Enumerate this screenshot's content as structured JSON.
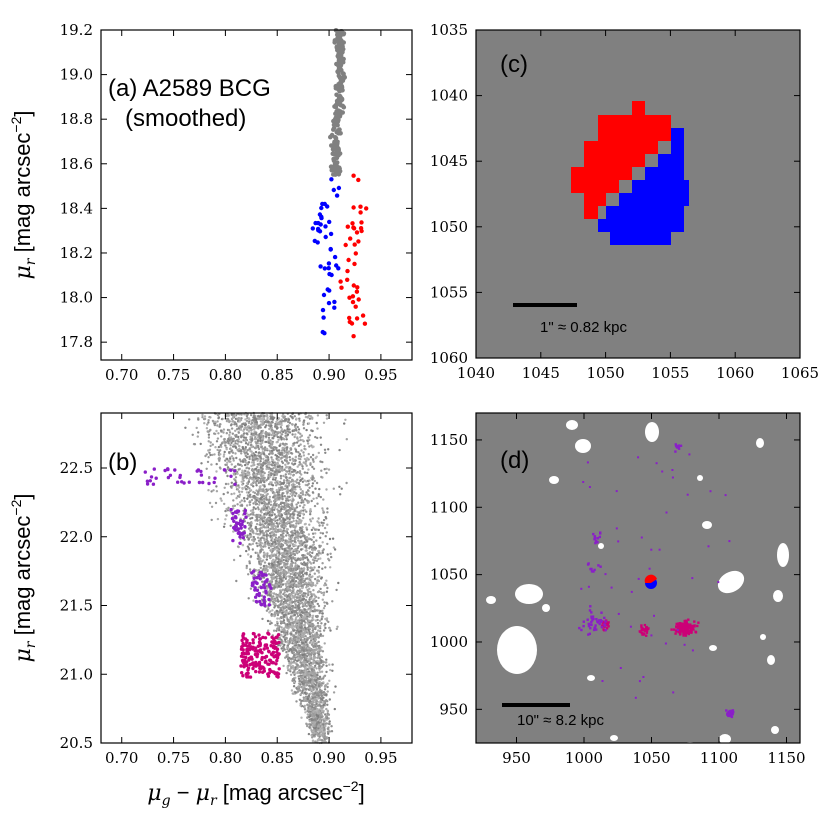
{
  "colors": {
    "blue": "#0000ff",
    "red": "#ff0000",
    "gray_points": "#808080",
    "magenta": "#cc0077",
    "purple": "#8a1fc8",
    "panel_bg": "#808080",
    "mask": "#ffffff"
  },
  "chart_data": [
    {
      "id": "a",
      "type": "scatter",
      "annotation_line1": "(a) A2589 BCG",
      "annotation_line2": "(smoothed)",
      "ylabel": "μ_r [mag arcsec^-2]",
      "xlabel": "",
      "xlim": [
        0.68,
        0.98
      ],
      "ylim": [
        19.2,
        17.72
      ],
      "xticks": [
        "0.70",
        "0.75",
        "0.80",
        "0.85",
        "0.90",
        "0.95"
      ],
      "yticks": [
        "17.8",
        "18.0",
        "18.2",
        "18.4",
        "18.6",
        "18.8",
        "19.0",
        "19.2"
      ],
      "series": [
        {
          "name": "blue",
          "x_range": [
            0.883,
            0.915
          ],
          "y_range": [
            17.83,
            18.55
          ],
          "n": 45
        },
        {
          "name": "red",
          "x_range": [
            0.91,
            0.938
          ],
          "y_range": [
            17.82,
            18.55
          ],
          "n": 40
        },
        {
          "name": "gray",
          "x_range": [
            0.896,
            0.922
          ],
          "y_range": [
            18.55,
            19.2
          ],
          "n": 220
        }
      ]
    },
    {
      "id": "b",
      "type": "scatter",
      "annotation": "(b)",
      "ylabel": "μ_r [mag arcsec^-2]",
      "xlabel": "μ_g − μ_r [mag arcsec^-2]",
      "xlim": [
        0.68,
        0.98
      ],
      "ylim": [
        22.9,
        20.5
      ],
      "xticks": [
        "0.70",
        "0.75",
        "0.80",
        "0.85",
        "0.90",
        "0.95"
      ],
      "yticks": [
        "20.5",
        "21.0",
        "21.5",
        "22.0",
        "22.5"
      ],
      "series": [
        {
          "name": "gray_cloud",
          "description": "dense point cloud along the red sequence"
        },
        {
          "name": "magenta",
          "x_range": [
            0.815,
            0.852
          ],
          "y_range": [
            20.97,
            21.3
          ],
          "n": 180
        },
        {
          "name": "purple_mid",
          "x_range": [
            0.825,
            0.845
          ],
          "y_range": [
            21.5,
            21.75
          ],
          "n": 45
        },
        {
          "name": "purple_low",
          "x_range": [
            0.805,
            0.82
          ],
          "y_range": [
            21.95,
            22.2
          ],
          "n": 40
        },
        {
          "name": "purple_tail",
          "x_range": [
            0.715,
            0.81
          ],
          "y_range": [
            22.38,
            22.5
          ],
          "n": 35
        }
      ]
    },
    {
      "id": "c",
      "type": "image",
      "annotation": "(c)",
      "xlim": [
        1040,
        1065
      ],
      "ylim": [
        1035,
        1060
      ],
      "xticks": [
        "1040",
        "1045",
        "1050",
        "1055",
        "1060",
        "1065"
      ],
      "yticks": [
        "1035",
        "1040",
        "1045",
        "1050",
        "1055",
        "1060"
      ],
      "scalebar_label": "1\" ≈ 0.82 kpc",
      "scalebar_length_data": 5,
      "regions": [
        {
          "name": "red",
          "description": "upper-left half of the BCG core"
        },
        {
          "name": "blue",
          "description": "lower-right half of the BCG core"
        }
      ]
    },
    {
      "id": "d",
      "type": "image",
      "annotation": "(d)",
      "xlim": [
        920,
        1160
      ],
      "ylim": [
        925,
        1170
      ],
      "xticks": [
        "950",
        "1000",
        "1050",
        "1100",
        "1150"
      ],
      "yticks": [
        "950",
        "1000",
        "1050",
        "1100",
        "1150"
      ],
      "scalebar_label": "10\" ≈ 8.2 kpc",
      "scalebar_length_data": 50,
      "regions": [
        {
          "name": "masked sources",
          "color": "white"
        },
        {
          "name": "core",
          "description": "red/blue BCG core at center"
        },
        {
          "name": "magenta clumps",
          "description": "pixels matching panel (b) magenta points"
        },
        {
          "name": "purple clumps",
          "description": "pixels matching panel (b) purple points"
        }
      ]
    }
  ]
}
